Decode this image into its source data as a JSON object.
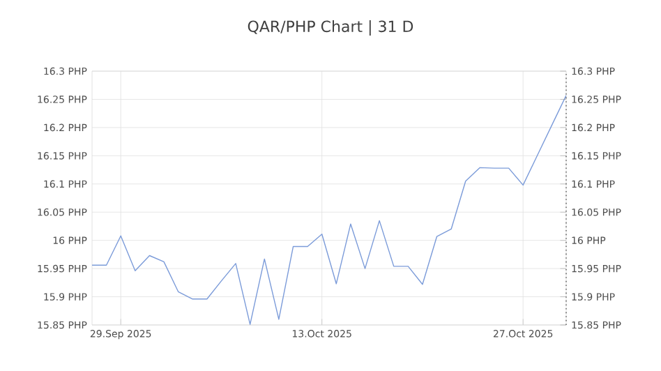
{
  "chart_data": {
    "type": "line",
    "title": "QAR/PHP Chart | 31 D",
    "x": [
      "2025-09-27",
      "2025-09-28",
      "2025-09-29",
      "2025-09-30",
      "2025-10-01",
      "2025-10-02",
      "2025-10-03",
      "2025-10-04",
      "2025-10-05",
      "2025-10-06",
      "2025-10-07",
      "2025-10-08",
      "2025-10-09",
      "2025-10-10",
      "2025-10-11",
      "2025-10-12",
      "2025-10-13",
      "2025-10-14",
      "2025-10-15",
      "2025-10-16",
      "2025-10-17",
      "2025-10-18",
      "2025-10-19",
      "2025-10-20",
      "2025-10-21",
      "2025-10-22",
      "2025-10-23",
      "2025-10-24",
      "2025-10-25",
      "2025-10-26",
      "2025-10-27",
      "2025-10-28",
      "2025-10-29",
      "2025-10-30"
    ],
    "series": [
      {
        "color": "#7b9bd9",
        "values": [
          15.956,
          15.956,
          16.008,
          15.946,
          15.973,
          15.962,
          15.909,
          15.896,
          15.896,
          15.928,
          15.959,
          15.851,
          15.967,
          15.86,
          15.989,
          15.989,
          16.011,
          15.923,
          16.029,
          15.95,
          16.035,
          15.954,
          15.954,
          15.922,
          16.007,
          16.02,
          16.105,
          16.129,
          16.128,
          16.128,
          16.098,
          16.151,
          16.204,
          16.257
        ]
      }
    ],
    "xlim": [
      "2025-09-27",
      "2025-10-30"
    ],
    "xticks": [
      {
        "value": "2025-09-29",
        "label": "29.Sep 2025"
      },
      {
        "value": "2025-10-13",
        "label": "13.Oct 2025"
      },
      {
        "value": "2025-10-27",
        "label": "27.Oct 2025"
      }
    ],
    "ylim": [
      15.85,
      16.3
    ],
    "yticks": [
      {
        "value": 15.85,
        "label": "15.85 PHP"
      },
      {
        "value": 15.9,
        "label": "15.9 PHP"
      },
      {
        "value": 15.95,
        "label": "15.95 PHP"
      },
      {
        "value": 16.0,
        "label": "16 PHP"
      },
      {
        "value": 16.05,
        "label": "16.05 PHP"
      },
      {
        "value": 16.1,
        "label": "16.1 PHP"
      },
      {
        "value": 16.15,
        "label": "16.15 PHP"
      },
      {
        "value": 16.2,
        "label": "16.2 PHP"
      },
      {
        "value": 16.25,
        "label": "16.25 PHP"
      },
      {
        "value": 16.3,
        "label": "16.3 PHP"
      }
    ],
    "y2lim": [
      15.85,
      16.3
    ],
    "y2ticks": [
      {
        "value": 15.85,
        "label": "15.85 PHP"
      },
      {
        "value": 15.9,
        "label": "15.9 PHP"
      },
      {
        "value": 15.95,
        "label": "15.95 PHP"
      },
      {
        "value": 16.0,
        "label": "16 PHP"
      },
      {
        "value": 16.05,
        "label": "16.05 PHP"
      },
      {
        "value": 16.1,
        "label": "16.1 PHP"
      },
      {
        "value": 16.15,
        "label": "16.15 PHP"
      },
      {
        "value": 16.2,
        "label": "16.2 PHP"
      },
      {
        "value": 16.25,
        "label": "16.25 PHP"
      },
      {
        "value": 16.3,
        "label": "16.3 PHP"
      }
    ],
    "grid": true,
    "marker": "none",
    "line_style": "solid"
  }
}
